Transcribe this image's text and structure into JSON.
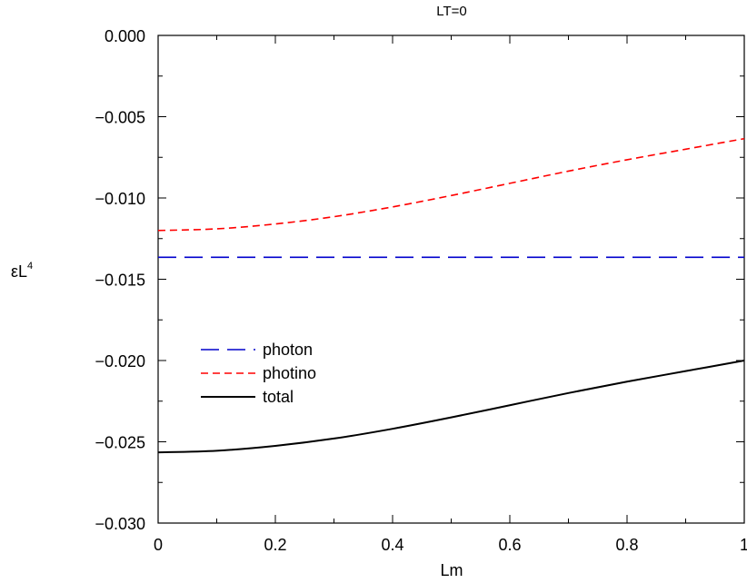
{
  "chart_data": {
    "type": "line",
    "title": "LT=0",
    "xlabel": "Lm",
    "ylabel_main": "εL",
    "ylabel_sup": "4",
    "xlim": [
      0,
      1
    ],
    "ylim": [
      -0.03,
      0.0
    ],
    "x_ticks": [
      0,
      0.2,
      0.4,
      0.6,
      0.8,
      1
    ],
    "x_tick_labels": [
      "0",
      "0.2",
      "0.4",
      "0.6",
      "0.8",
      "1"
    ],
    "y_ticks": [
      0.0,
      -0.005,
      -0.01,
      -0.015,
      -0.02,
      -0.025,
      -0.03
    ],
    "y_tick_labels": [
      "0.000",
      "−0.005",
      "−0.010",
      "−0.015",
      "−0.020",
      "−0.025",
      "−0.030"
    ],
    "grid": false,
    "legend_position": "middle-left",
    "series": [
      {
        "name": "photon",
        "color": "#0000cc",
        "dash": "long-dash",
        "x": [
          0,
          0.1,
          0.2,
          0.3,
          0.4,
          0.5,
          0.6,
          0.7,
          0.8,
          0.9,
          1.0
        ],
        "y": [
          -0.01365,
          -0.01365,
          -0.01365,
          -0.01365,
          -0.01365,
          -0.01365,
          -0.01365,
          -0.01365,
          -0.01365,
          -0.01365,
          -0.01365
        ]
      },
      {
        "name": "photino",
        "color": "#ff0000",
        "dash": "short-dash",
        "x": [
          0,
          0.1,
          0.2,
          0.3,
          0.4,
          0.5,
          0.6,
          0.7,
          0.8,
          0.9,
          1.0
        ],
        "y": [
          -0.012,
          -0.0119,
          -0.0116,
          -0.01115,
          -0.01055,
          -0.00985,
          -0.0091,
          -0.00835,
          -0.00765,
          -0.007,
          -0.00635
        ]
      },
      {
        "name": "total",
        "color": "#000000",
        "dash": "solid",
        "x": [
          0,
          0.1,
          0.2,
          0.3,
          0.4,
          0.5,
          0.6,
          0.7,
          0.8,
          0.9,
          1.0
        ],
        "y": [
          -0.02565,
          -0.02555,
          -0.02525,
          -0.0248,
          -0.0242,
          -0.0235,
          -0.02275,
          -0.022,
          -0.0213,
          -0.02065,
          -0.02
        ]
      }
    ]
  }
}
